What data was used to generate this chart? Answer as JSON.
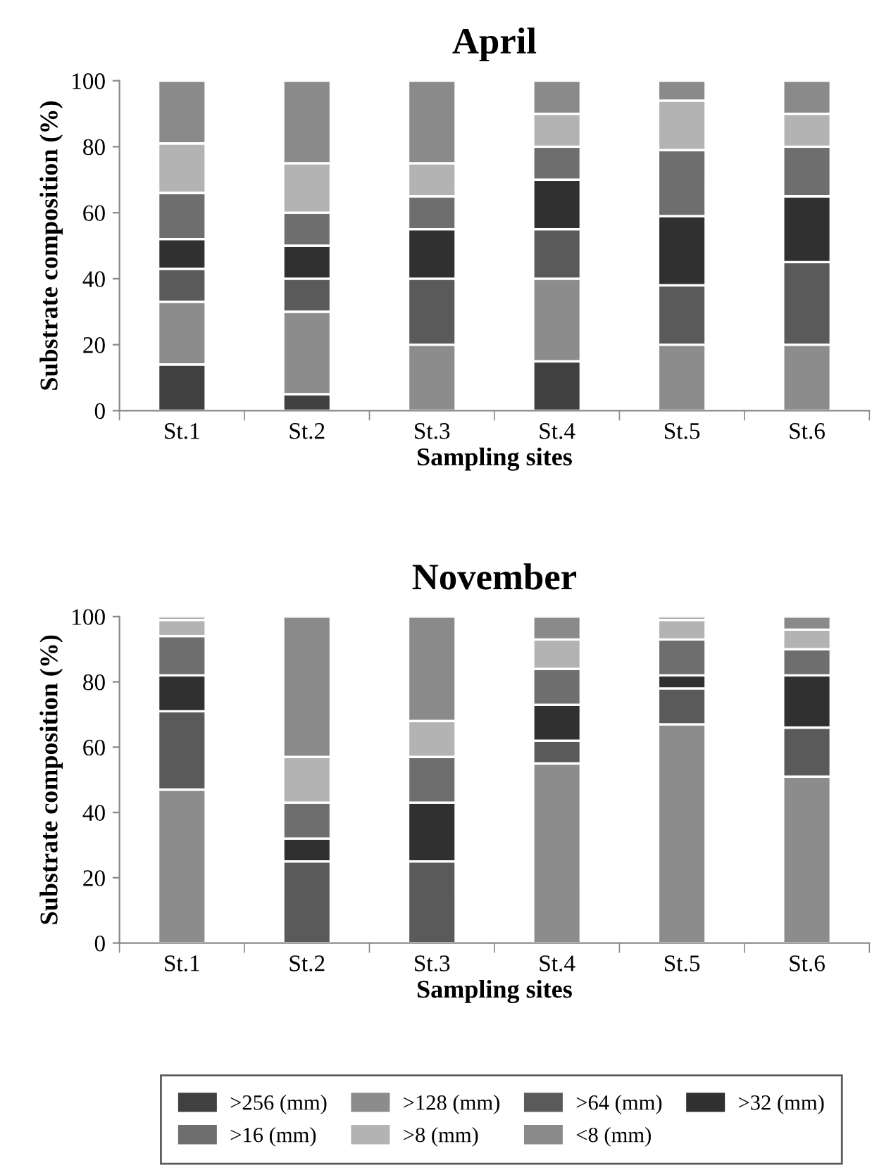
{
  "chart_data": [
    {
      "type": "bar",
      "stacked": true,
      "title": "April",
      "xlabel": "Sampling sites",
      "ylabel": "Substrate composition (%)",
      "categories": [
        "St.1",
        "St.2",
        "St.3",
        "St.4",
        "St.5",
        "St.6"
      ],
      "ylim": [
        0,
        100
      ],
      "yticks": [
        0,
        20,
        40,
        60,
        80,
        100
      ],
      "grid": false,
      "legend": "bottom",
      "series": [
        {
          "name": ">256 (mm)",
          "color": "#404040",
          "values": [
            14,
            5,
            0,
            15,
            0,
            0
          ]
        },
        {
          "name": ">128 (mm)",
          "color": "#8c8c8c",
          "values": [
            19,
            25,
            20,
            25,
            20,
            20
          ]
        },
        {
          "name": ">64 (mm)",
          "color": "#5a5a5a",
          "values": [
            10,
            10,
            20,
            15,
            18,
            25
          ]
        },
        {
          "name": ">32 (mm)",
          "color": "#303030",
          "values": [
            9,
            10,
            15,
            15,
            21,
            20
          ]
        },
        {
          "name": ">16 (mm)",
          "color": "#6e6e6e",
          "values": [
            14,
            10,
            10,
            10,
            20,
            15
          ]
        },
        {
          "name": ">8 (mm)",
          "color": "#b3b3b3",
          "values": [
            15,
            15,
            10,
            10,
            15,
            10
          ]
        },
        {
          "name": "<8 (mm)",
          "color": "#8a8a8a",
          "values": [
            19,
            25,
            25,
            10,
            6,
            10
          ]
        }
      ]
    },
    {
      "type": "bar",
      "stacked": true,
      "title": "November",
      "xlabel": "Sampling sites",
      "ylabel": "Substrate composition (%)",
      "categories": [
        "St.1",
        "St.2",
        "St.3",
        "St.4",
        "St.5",
        "St.6"
      ],
      "ylim": [
        0,
        100
      ],
      "yticks": [
        0,
        20,
        40,
        60,
        80,
        100
      ],
      "grid": false,
      "series": [
        {
          "color": "#404040",
          "values": [
            0,
            0,
            0,
            0,
            0,
            0
          ]
        },
        {
          "color": "#8c8c8c",
          "values": [
            47,
            0,
            0,
            55,
            67,
            51
          ]
        },
        {
          "color": "#5a5a5a",
          "values": [
            24,
            25,
            25,
            7,
            11,
            15
          ]
        },
        {
          "color": "#303030",
          "values": [
            11,
            7,
            18,
            11,
            4,
            16
          ]
        },
        {
          "color": "#6e6e6e",
          "values": [
            12,
            11,
            14,
            11,
            11,
            8
          ]
        },
        {
          "color": "#b3b3b3",
          "values": [
            5,
            14,
            11,
            9,
            6,
            6
          ]
        },
        {
          "color": "#8a8a8a",
          "values": [
            1,
            43,
            32,
            7,
            1,
            4
          ]
        }
      ]
    }
  ]
}
